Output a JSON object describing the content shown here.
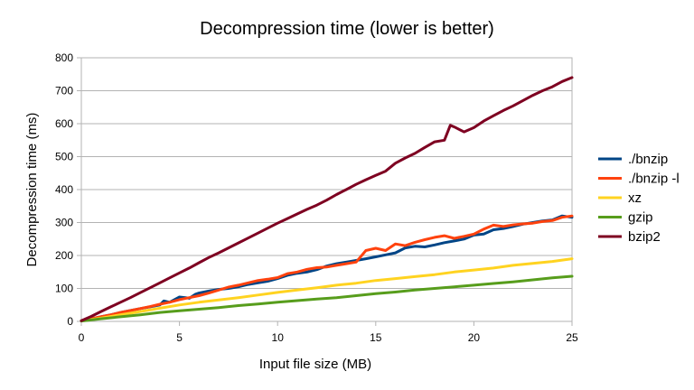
{
  "chart_data": {
    "type": "line",
    "title": "Decompression time (lower is better)",
    "xlabel": "Input file size (MB)",
    "ylabel": "Decompression time (ms)",
    "xlim": [
      0,
      25
    ],
    "ylim": [
      0,
      800
    ],
    "xticks": [
      0,
      5,
      10,
      15,
      20,
      25
    ],
    "yticks": [
      0,
      100,
      200,
      300,
      400,
      500,
      600,
      700,
      800
    ],
    "grid": "horizontal",
    "legend_position": "right",
    "series": [
      {
        "name": "./bnzip",
        "color": "#004586",
        "points": [
          [
            0,
            2
          ],
          [
            0.5,
            8
          ],
          [
            1,
            14
          ],
          [
            1.5,
            20
          ],
          [
            2,
            27
          ],
          [
            2.5,
            33
          ],
          [
            3,
            39
          ],
          [
            3.5,
            44
          ],
          [
            4,
            50
          ],
          [
            4.2,
            62
          ],
          [
            4.5,
            58
          ],
          [
            5,
            74
          ],
          [
            5.3,
            72
          ],
          [
            5.5,
            70
          ],
          [
            5.8,
            82
          ],
          [
            6,
            86
          ],
          [
            6.5,
            92
          ],
          [
            7,
            97
          ],
          [
            7.5,
            100
          ],
          [
            8,
            105
          ],
          [
            8.5,
            112
          ],
          [
            9,
            117
          ],
          [
            9.5,
            122
          ],
          [
            10,
            130
          ],
          [
            10.5,
            140
          ],
          [
            11,
            146
          ],
          [
            11.5,
            150
          ],
          [
            12,
            157
          ],
          [
            12.5,
            168
          ],
          [
            13,
            175
          ],
          [
            13.5,
            180
          ],
          [
            14,
            185
          ],
          [
            14.5,
            190
          ],
          [
            15,
            196
          ],
          [
            15.5,
            202
          ],
          [
            16,
            208
          ],
          [
            16.5,
            223
          ],
          [
            17,
            228
          ],
          [
            17.5,
            226
          ],
          [
            18,
            232
          ],
          [
            18.5,
            239
          ],
          [
            19,
            244
          ],
          [
            19.5,
            250
          ],
          [
            20,
            262
          ],
          [
            20.5,
            265
          ],
          [
            21,
            278
          ],
          [
            21.5,
            282
          ],
          [
            22,
            288
          ],
          [
            22.5,
            295
          ],
          [
            23,
            300
          ],
          [
            23.5,
            305
          ],
          [
            24,
            308
          ],
          [
            24.5,
            320
          ],
          [
            25,
            316
          ]
        ]
      },
      {
        "name": "./bnzip -l",
        "color": "#ff420e",
        "points": [
          [
            0,
            2
          ],
          [
            0.5,
            8
          ],
          [
            1,
            14
          ],
          [
            1.5,
            20
          ],
          [
            2,
            27
          ],
          [
            2.5,
            33
          ],
          [
            3,
            39
          ],
          [
            3.5,
            45
          ],
          [
            4,
            52
          ],
          [
            4.5,
            58
          ],
          [
            5,
            66
          ],
          [
            5.5,
            72
          ],
          [
            6,
            78
          ],
          [
            6.5,
            86
          ],
          [
            7,
            95
          ],
          [
            7.5,
            104
          ],
          [
            8,
            110
          ],
          [
            8.5,
            117
          ],
          [
            9,
            124
          ],
          [
            9.5,
            128
          ],
          [
            10,
            133
          ],
          [
            10.5,
            145
          ],
          [
            11,
            150
          ],
          [
            11.5,
            158
          ],
          [
            12,
            163
          ],
          [
            12.5,
            165
          ],
          [
            13,
            170
          ],
          [
            13.5,
            175
          ],
          [
            14,
            180
          ],
          [
            14.5,
            215
          ],
          [
            15,
            222
          ],
          [
            15.5,
            215
          ],
          [
            16,
            235
          ],
          [
            16.5,
            230
          ],
          [
            17,
            240
          ],
          [
            17.5,
            248
          ],
          [
            18,
            255
          ],
          [
            18.5,
            260
          ],
          [
            19,
            252
          ],
          [
            19.5,
            258
          ],
          [
            20,
            265
          ],
          [
            20.5,
            280
          ],
          [
            21,
            292
          ],
          [
            21.5,
            288
          ],
          [
            22,
            293
          ],
          [
            22.5,
            296
          ],
          [
            23,
            298
          ],
          [
            23.5,
            303
          ],
          [
            24,
            306
          ],
          [
            24.5,
            316
          ],
          [
            25,
            320
          ]
        ]
      },
      {
        "name": "xz",
        "color": "#ffd320",
        "points": [
          [
            0,
            2
          ],
          [
            1,
            10
          ],
          [
            2,
            20
          ],
          [
            3,
            30
          ],
          [
            4,
            40
          ],
          [
            5,
            50
          ],
          [
            6,
            58
          ],
          [
            7,
            65
          ],
          [
            8,
            72
          ],
          [
            9,
            80
          ],
          [
            10,
            88
          ],
          [
            11,
            95
          ],
          [
            12,
            102
          ],
          [
            13,
            110
          ],
          [
            14,
            116
          ],
          [
            15,
            124
          ],
          [
            16,
            130
          ],
          [
            17,
            136
          ],
          [
            18,
            142
          ],
          [
            19,
            150
          ],
          [
            20,
            156
          ],
          [
            21,
            162
          ],
          [
            22,
            170
          ],
          [
            23,
            176
          ],
          [
            24,
            182
          ],
          [
            25,
            190
          ]
        ]
      },
      {
        "name": "gzip",
        "color": "#579d1c",
        "points": [
          [
            0,
            1
          ],
          [
            1,
            8
          ],
          [
            2,
            14
          ],
          [
            3,
            20
          ],
          [
            4,
            27
          ],
          [
            5,
            32
          ],
          [
            6,
            37
          ],
          [
            7,
            42
          ],
          [
            8,
            48
          ],
          [
            9,
            53
          ],
          [
            10,
            58
          ],
          [
            11,
            63
          ],
          [
            12,
            68
          ],
          [
            13,
            72
          ],
          [
            14,
            78
          ],
          [
            15,
            84
          ],
          [
            16,
            89
          ],
          [
            17,
            95
          ],
          [
            18,
            100
          ],
          [
            19,
            105
          ],
          [
            20,
            110
          ],
          [
            21,
            115
          ],
          [
            22,
            120
          ],
          [
            23,
            126
          ],
          [
            24,
            132
          ],
          [
            25,
            137
          ]
        ]
      },
      {
        "name": "bzip2",
        "color": "#7e0021",
        "points": [
          [
            0,
            2
          ],
          [
            0.5,
            15
          ],
          [
            1,
            30
          ],
          [
            1.5,
            44
          ],
          [
            2,
            58
          ],
          [
            2.5,
            72
          ],
          [
            3,
            87
          ],
          [
            3.5,
            102
          ],
          [
            4,
            117
          ],
          [
            4.5,
            132
          ],
          [
            5,
            147
          ],
          [
            5.5,
            162
          ],
          [
            6,
            178
          ],
          [
            6.5,
            194
          ],
          [
            7,
            208
          ],
          [
            7.5,
            223
          ],
          [
            8,
            238
          ],
          [
            8.5,
            253
          ],
          [
            9,
            268
          ],
          [
            9.5,
            283
          ],
          [
            10,
            298
          ],
          [
            10.5,
            312
          ],
          [
            11,
            326
          ],
          [
            11.5,
            340
          ],
          [
            12,
            353
          ],
          [
            12.5,
            368
          ],
          [
            13,
            385
          ],
          [
            13.5,
            400
          ],
          [
            14,
            416
          ],
          [
            14.5,
            430
          ],
          [
            15,
            443
          ],
          [
            15.5,
            456
          ],
          [
            16,
            480
          ],
          [
            16.5,
            496
          ],
          [
            17,
            510
          ],
          [
            17.5,
            528
          ],
          [
            18,
            545
          ],
          [
            18.5,
            550
          ],
          [
            18.8,
            595
          ],
          [
            19,
            590
          ],
          [
            19.5,
            575
          ],
          [
            20,
            588
          ],
          [
            20.5,
            608
          ],
          [
            21,
            624
          ],
          [
            21.5,
            640
          ],
          [
            22,
            654
          ],
          [
            22.5,
            670
          ],
          [
            23,
            686
          ],
          [
            23.5,
            700
          ],
          [
            24,
            712
          ],
          [
            24.5,
            728
          ],
          [
            25,
            740
          ]
        ]
      }
    ]
  }
}
